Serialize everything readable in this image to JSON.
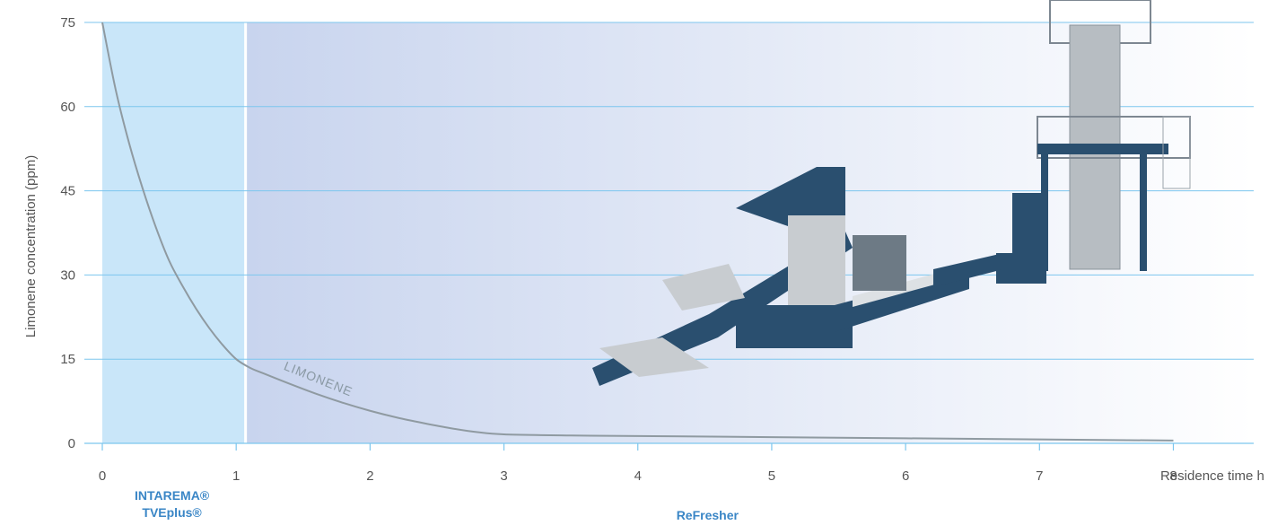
{
  "colors": {
    "zone1_fill": "#c9e6f9",
    "zone2_fill_start": "#c8d4ee",
    "zone2_fill_end": "#ffffff",
    "grid": "#7cc6ee",
    "axis": "#7cc6ee",
    "curve": "#8f9aa1",
    "region_label": "#3a86c6",
    "machine_blue": "#2a4f6f",
    "machine_grey": "#c8ccd0"
  },
  "chart_data": {
    "type": "line",
    "xlabel": "Residence time h",
    "ylabel": "Limonene concentration (ppm)",
    "xlim": [
      0,
      8.6
    ],
    "ylim": [
      0,
      75
    ],
    "xticks": [
      0,
      1,
      2,
      3,
      4,
      5,
      6,
      7,
      8
    ],
    "yticks": [
      0,
      15,
      30,
      45,
      60,
      75
    ],
    "grid": true,
    "series": [
      {
        "name": "LIMONENE",
        "x": [
          0,
          0.1,
          0.2,
          0.3,
          0.4,
          0.5,
          0.6,
          0.7,
          0.8,
          0.9,
          1.0,
          1.1,
          1.2,
          1.4,
          1.6,
          1.8,
          2.0,
          2.2,
          2.4,
          2.6,
          2.8,
          3.0,
          3.5,
          4.0,
          5.0,
          6.0,
          7.0,
          8.0
        ],
        "values": [
          75,
          63,
          53.5,
          45.5,
          38.5,
          32.5,
          28,
          24,
          20.5,
          17.5,
          15,
          13.5,
          12.5,
          10.6,
          8.8,
          7.2,
          5.8,
          4.6,
          3.6,
          2.7,
          2.0,
          1.6,
          1.4,
          1.3,
          1.1,
          0.9,
          0.7,
          0.5
        ]
      }
    ],
    "regions": [
      {
        "label_lines": [
          "INTAREMA®",
          "TVEplus®"
        ],
        "x_start": 0,
        "x_end": 1.07
      },
      {
        "label_lines": [
          "ReFresher"
        ],
        "x_start": 1.07,
        "x_end": 8.6
      }
    ]
  }
}
